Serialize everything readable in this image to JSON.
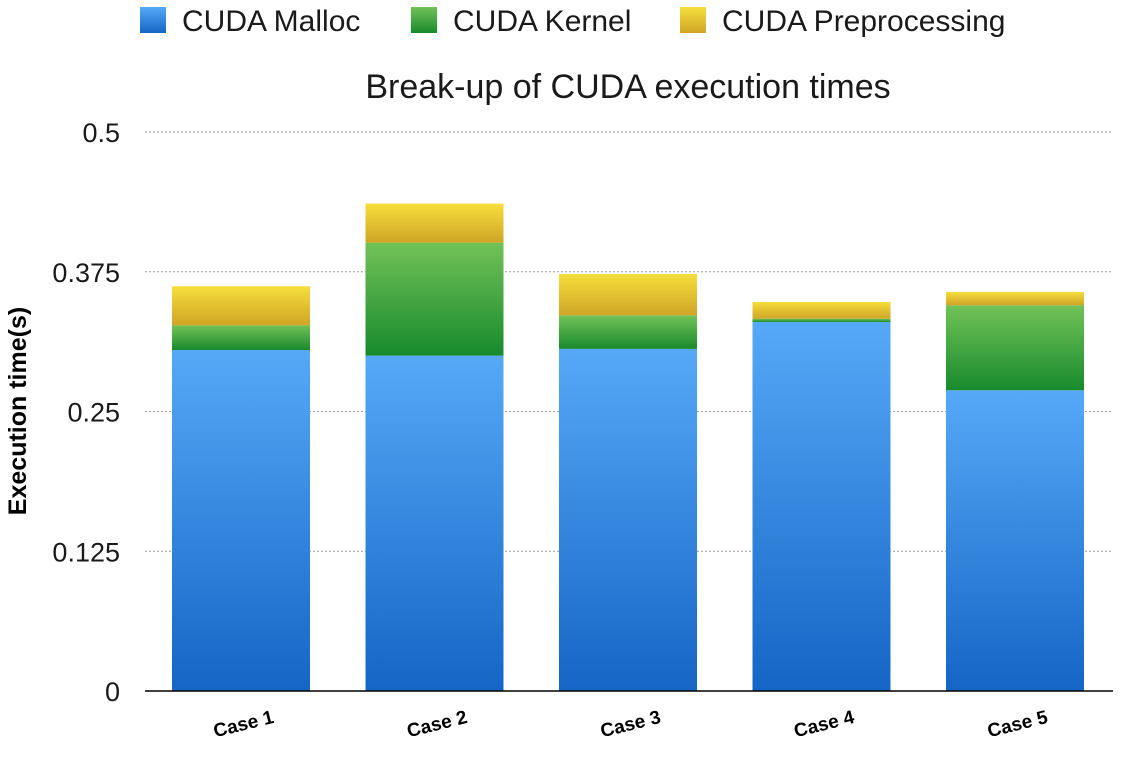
{
  "chart_data": {
    "type": "bar",
    "stacked": true,
    "title": "Break-up of CUDA execution times",
    "xlabel": "",
    "ylabel": "Execution time(s)",
    "categories": [
      "Case 1",
      "Case 2",
      "Case 3",
      "Case 4",
      "Case 5"
    ],
    "series": [
      {
        "name": "CUDA Malloc",
        "color": "#3a8fe6",
        "values": [
          0.305,
          0.3,
          0.306,
          0.33,
          0.269
        ]
      },
      {
        "name": "CUDA Kernel",
        "color": "#2e9a3c",
        "values": [
          0.022,
          0.101,
          0.03,
          0.003,
          0.076
        ]
      },
      {
        "name": "CUDA Preprocessing",
        "color": "#e9c32a",
        "values": [
          0.035,
          0.035,
          0.037,
          0.015,
          0.012
        ]
      }
    ],
    "ylim": [
      0,
      0.5
    ],
    "yticks": [
      "0",
      "0.125",
      "0.25",
      "0.375",
      "0.5"
    ],
    "grid": true,
    "legend": "top"
  }
}
